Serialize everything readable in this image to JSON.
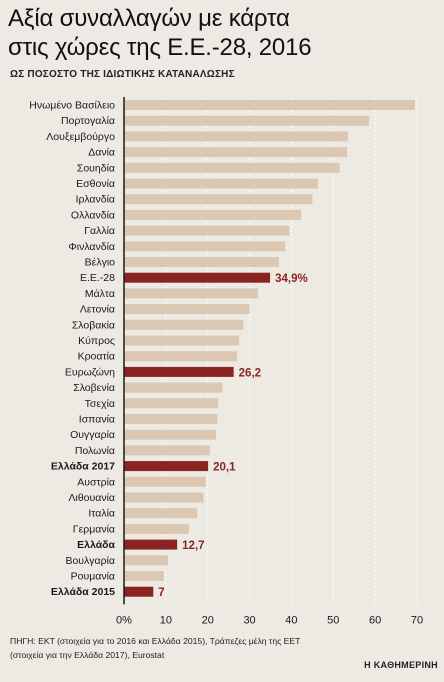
{
  "header": {
    "title_line1": "Αξία συναλλαγών με κάρτα",
    "title_line2": "στις χώρες της Ε.Ε.-28, 2016",
    "subtitle": "ΩΣ ΠΟΣΟΣΤΟ ΤΗΣ ΙΔΙΩΤΙΚΗΣ ΚΑΤΑΝΑΛΩΣΗΣ"
  },
  "colors": {
    "background": "#ede9e3",
    "bar": "#dbc7b2",
    "highlight": "#8b2323",
    "axis": "#1a1a1a"
  },
  "chart_data": {
    "type": "bar",
    "orientation": "horizontal",
    "categories": [
      "Ηνωμένο Βασίλειο",
      "Πορτογαλία",
      "Λουξεμβούργο",
      "Δανία",
      "Σουηδία",
      "Εσθονία",
      "Ιρλανδία",
      "Ολλανδία",
      "Γαλλία",
      "Φινλανδία",
      "Βέλγιο",
      "Ε.Ε.-28",
      "Μάλτα",
      "Λετονία",
      "Σλοβακία",
      "Κύπρος",
      "Κροατία",
      "Ευρωζώνη",
      "Σλοβενία",
      "Τσεχία",
      "Ισπανία",
      "Ουγγαρία",
      "Πολωνία",
      "Ελλάδα 2017",
      "Αυστρία",
      "Λιθουανία",
      "Ιταλία",
      "Γερμανία",
      "Ελλάδα",
      "Βουλγαρία",
      "Ρουμανία",
      "Ελλάδα 2015"
    ],
    "values": [
      69.5,
      58.5,
      53.5,
      53.3,
      51.5,
      46.3,
      45.0,
      42.3,
      39.5,
      38.5,
      37.0,
      34.9,
      32.0,
      30.0,
      28.5,
      27.5,
      27.0,
      26.2,
      23.5,
      22.5,
      22.3,
      22.0,
      20.5,
      20.1,
      19.5,
      19.0,
      17.5,
      15.5,
      12.7,
      10.5,
      9.5,
      7.0
    ],
    "highlighted": [
      "Ε.Ε.-28",
      "Ευρωζώνη",
      "Ελλάδα 2017",
      "Ελλάδα",
      "Ελλάδα 2015"
    ],
    "bold_labels": [
      "Ελλάδα 2017",
      "Ελλάδα",
      "Ελλάδα 2015"
    ],
    "value_labels": {
      "Ε.Ε.-28": "34,9%",
      "Ευρωζώνη": "26,2",
      "Ελλάδα 2017": "20,1",
      "Ελλάδα": "12,7",
      "Ελλάδα 2015": "7"
    },
    "xticks": [
      "0%",
      "10",
      "20",
      "30",
      "40",
      "50",
      "60",
      "70"
    ],
    "xlim": [
      0,
      70
    ],
    "grid": true
  },
  "footer": {
    "source_line1": "ΠΗΓΗ: ΕΚΤ (στοιχεία για το 2016 και Ελλάδα 2015), Τράπεζες μέλη της ΕΕΤ",
    "source_line2": "(στοιχεία για την Ελλάδα 2017), Eurostat",
    "brand": "Η ΚΑΘΗΜΕΡΙΝΗ"
  }
}
